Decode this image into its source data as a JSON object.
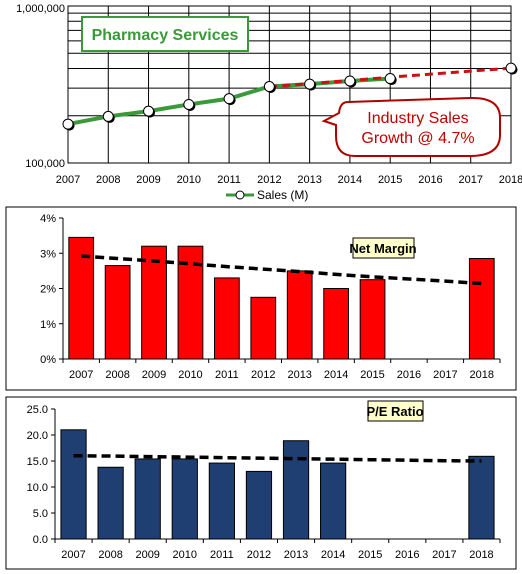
{
  "chart_data": [
    {
      "type": "line",
      "title": "Pharmacy Services",
      "y_scale": "log",
      "ylim": [
        100000,
        1000000
      ],
      "y_ticks": [
        "100,000",
        "1,000,000"
      ],
      "x": [
        "2007",
        "2008",
        "2009",
        "2010",
        "2011",
        "2012",
        "2013",
        "2014",
        "2015",
        "2016",
        "2017",
        "2018"
      ],
      "series": [
        {
          "name": "Sales (M)",
          "color": "#3a9a3a",
          "points": [
            [
              2007,
              177000
            ],
            [
              2008,
              198000
            ],
            [
              2009,
              214000
            ],
            [
              2010,
              236000
            ],
            [
              2011,
              257000
            ],
            [
              2012,
              307000
            ],
            [
              2013,
              318000
            ],
            [
              2014,
              333000
            ],
            [
              2015,
              345000
            ]
          ]
        },
        {
          "name": "",
          "color": "#cc1111",
          "style": "dashed",
          "points": [
            [
              2012,
              307000
            ],
            [
              2013,
              320000
            ],
            [
              2014,
              335000
            ],
            [
              2015,
              352000
            ],
            [
              2016,
              368000
            ],
            [
              2017,
              385000
            ],
            [
              2018,
              402000
            ]
          ]
        }
      ],
      "extra_markers": [
        [
          2018,
          402000
        ]
      ],
      "legend": "bottom",
      "annotation": {
        "line1": "Industry Sales",
        "line2": "Growth @ 4.7%"
      },
      "grid": true
    },
    {
      "type": "bar",
      "title": "Net Margin",
      "categories": [
        "2007",
        "2008",
        "2009",
        "2010",
        "2011",
        "2012",
        "2013",
        "2014",
        "2015",
        "2016",
        "2017",
        "2018"
      ],
      "values": [
        3.45,
        2.65,
        3.2,
        3.2,
        2.3,
        1.75,
        2.5,
        2.0,
        2.25,
        null,
        null,
        2.85
      ],
      "trend": [
        [
          2007,
          2.92
        ],
        [
          2008,
          2.85
        ],
        [
          2009,
          2.78
        ],
        [
          2010,
          2.7
        ],
        [
          2011,
          2.62
        ],
        [
          2012,
          2.55
        ],
        [
          2013,
          2.48
        ],
        [
          2014,
          2.4
        ],
        [
          2015,
          2.33
        ],
        [
          2016,
          2.27
        ],
        [
          2017,
          2.21
        ],
        [
          2018,
          2.14
        ]
      ],
      "color": "#ff0000",
      "ylim": [
        0,
        4
      ],
      "y_ticks": [
        "0%",
        "1%",
        "2%",
        "3%",
        "4%"
      ],
      "grid": false
    },
    {
      "type": "bar",
      "title": "P/E Ratio",
      "categories": [
        "2007",
        "2008",
        "2009",
        "2010",
        "2011",
        "2012",
        "2013",
        "2014",
        "2015",
        "2016",
        "2017",
        "2018"
      ],
      "values": [
        21.0,
        13.8,
        15.4,
        15.4,
        14.6,
        13.0,
        18.9,
        14.6,
        null,
        null,
        null,
        15.9
      ],
      "trend": [
        [
          2007,
          16.0
        ],
        [
          2008,
          15.95
        ],
        [
          2009,
          15.85
        ],
        [
          2010,
          15.75
        ],
        [
          2011,
          15.65
        ],
        [
          2012,
          15.55
        ],
        [
          2013,
          15.45
        ],
        [
          2014,
          15.35
        ],
        [
          2015,
          15.25
        ],
        [
          2016,
          15.15
        ],
        [
          2017,
          15.05
        ],
        [
          2018,
          15.0
        ]
      ],
      "color": "#1f3f73",
      "ylim": [
        0,
        25
      ],
      "y_ticks": [
        "0.0",
        "5.0",
        "10.0",
        "15.0",
        "20.0",
        "25.0"
      ],
      "grid": false
    }
  ]
}
